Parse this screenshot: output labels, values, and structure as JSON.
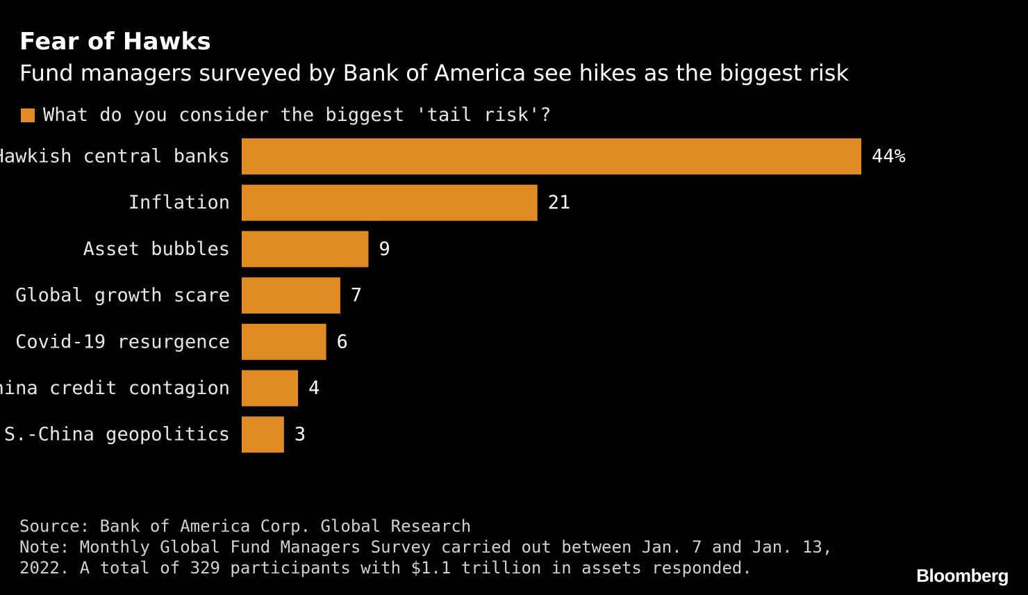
{
  "header": {
    "title": "Fear of Hawks",
    "subtitle": "Fund managers surveyed by Bank of America see hikes as the biggest risk"
  },
  "legend": {
    "label": "What do you consider the biggest 'tail risk'?",
    "color": "#E08A24"
  },
  "chart_data": {
    "type": "bar",
    "orientation": "horizontal",
    "title": "Fear of Hawks",
    "subtitle": "Fund managers surveyed by Bank of America see hikes as the biggest risk",
    "categories": [
      "Hawkish central banks",
      "Inflation",
      "Asset bubbles",
      "Global growth scare",
      "Covid-19 resurgence",
      "China credit contagion",
      "U.S.-China geopolitics"
    ],
    "series": [
      {
        "name": "What do you consider the biggest 'tail risk'?",
        "values": [
          44,
          21,
          9,
          7,
          6,
          4,
          3
        ],
        "value_labels": [
          "44%",
          "21",
          "9",
          "7",
          "6",
          "4",
          "3"
        ],
        "color": "#E08A24"
      }
    ],
    "xlim": [
      0,
      44
    ],
    "grid": false,
    "legend_position": "top-left"
  },
  "footer": {
    "source": "Source: Bank of America Corp. Global Research",
    "note": "Note: Monthly Global Fund Managers Survey carried out between Jan. 7 and Jan. 13, 2022. A total of 329 participants with $1.1 trillion in assets responded."
  },
  "brand": "Bloomberg"
}
